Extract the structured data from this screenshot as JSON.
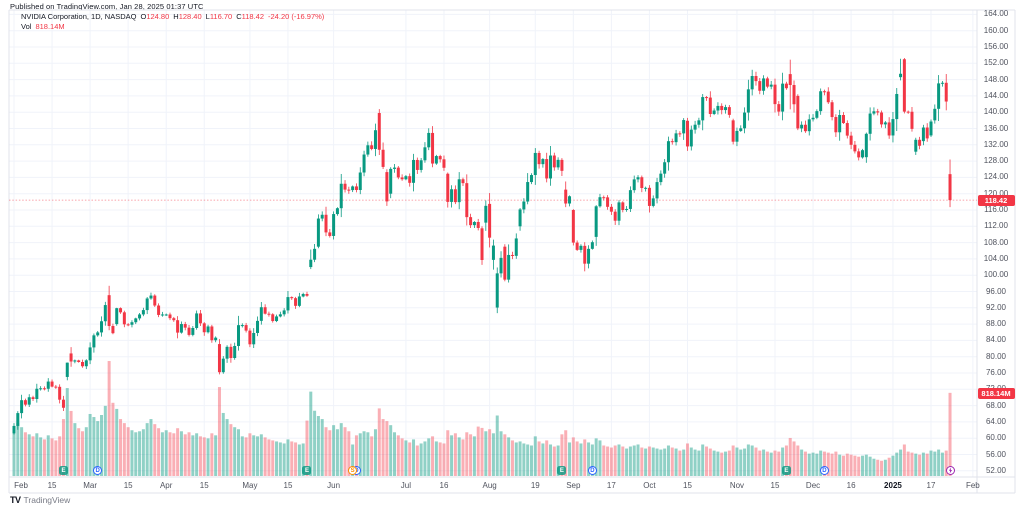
{
  "header": {
    "published": "Published on TradingView.com, Jan 28, 2025 01:37 UTC"
  },
  "legend": {
    "title": "NVIDIA Corporation, 1D, NASDAQ",
    "o_label": "O",
    "o": "124.80",
    "h_label": "H",
    "h": "128.40",
    "l_label": "L",
    "l": "116.70",
    "c_label": "C",
    "c": "118.42",
    "change": "-24.20 (-16.97%)",
    "vol_label": "Vol",
    "vol": "818.14M"
  },
  "attribution": {
    "mark": "TV",
    "text": "TradingView"
  },
  "chart_data": {
    "type": "candlestick+volume",
    "symbol": "NVIDIA Corporation",
    "interval": "1D",
    "exchange": "NASDAQ",
    "last_ohlc": {
      "open": 124.8,
      "high": 128.4,
      "low": 116.7,
      "close": 118.42,
      "change": -24.2,
      "change_pct": -16.97
    },
    "last_price_label": "118.42",
    "last_volume_label": "818.14M",
    "last_volume_m": 818.14,
    "y_axis": {
      "min": 52,
      "max": 164,
      "step": 4
    },
    "grid": true,
    "x_labels": [
      {
        "t": "Feb",
        "i": 0
      },
      {
        "t": "15",
        "i": 10
      },
      {
        "t": "Mar",
        "i": 20
      },
      {
        "t": "15",
        "i": 30
      },
      {
        "t": "Apr",
        "i": 40
      },
      {
        "t": "15",
        "i": 50
      },
      {
        "t": "May",
        "i": 62
      },
      {
        "t": "15",
        "i": 72
      },
      {
        "t": "Jun",
        "i": 84
      },
      {
        "t": "Jul",
        "i": 103
      },
      {
        "t": "16",
        "i": 113
      },
      {
        "t": "Aug",
        "i": 125
      },
      {
        "t": "19",
        "i": 137
      },
      {
        "t": "Sep",
        "i": 147
      },
      {
        "t": "17",
        "i": 157
      },
      {
        "t": "Oct",
        "i": 167
      },
      {
        "t": "15",
        "i": 177
      },
      {
        "t": "Nov",
        "i": 190
      },
      {
        "t": "15",
        "i": 200
      },
      {
        "t": "Dec",
        "i": 210
      },
      {
        "t": "16",
        "i": 220
      },
      {
        "t": "2025",
        "i": 231,
        "b": true
      },
      {
        "t": "17",
        "i": 241
      },
      {
        "t": "Feb",
        "i": 252
      }
    ],
    "events": [
      {
        "i": 13,
        "type": "earnings",
        "glyph": "E"
      },
      {
        "i": 22,
        "type": "dividend",
        "glyph": "D"
      },
      {
        "i": 77,
        "type": "earnings",
        "glyph": "E"
      },
      {
        "i": 90,
        "type": "dividend",
        "glyph": "D"
      },
      {
        "i": 89,
        "type": "split",
        "glyph": "S"
      },
      {
        "i": 144,
        "type": "earnings",
        "glyph": "E"
      },
      {
        "i": 152,
        "type": "dividend",
        "glyph": "D"
      },
      {
        "i": 203,
        "type": "earnings",
        "glyph": "E"
      },
      {
        "i": 213,
        "type": "dividend",
        "glyph": "D"
      },
      {
        "i": 246,
        "type": "future-earnings",
        "glyph": "bolt"
      }
    ],
    "colors": {
      "up": "#089981",
      "down": "#F23645",
      "vol_up": "rgba(8,153,129,0.45)",
      "vol_down": "rgba(242,54,69,0.40)",
      "grid": "#F0F3FA",
      "frame": "#E0E3EB",
      "price_line": "#F23645"
    },
    "vol_axis_max_m": 1200,
    "closes": [
      63.01,
      66.16,
      69.33,
      68.23,
      70.05,
      69.62,
      72.13,
      72.25,
      72.13,
      73.9,
      72.66,
      72.61,
      69.45,
      67.47,
      78.54,
      78.82,
      79.09,
      78.7,
      77.66,
      79.11,
      82.28,
      85.24,
      85.96,
      88.7,
      92.67,
      87.53,
      85.77,
      91.91,
      90.89,
      87.94,
      87.84,
      88.46,
      89.4,
      90.37,
      91.44,
      94.29,
      95.0,
      92.56,
      90.25,
      90.36,
      90.36,
      89.45,
      88.96,
      85.91,
      88.01,
      87.13,
      85.35,
      87.04,
      90.62,
      88.19,
      86.0,
      87.42,
      84.04,
      84.67,
      76.2,
      79.52,
      82.42,
      79.68,
      82.63,
      87.74,
      87.76,
      86.4,
      83.04,
      85.82,
      88.79,
      92.14,
      90.55,
      90.41,
      88.75,
      89.88,
      90.4,
      91.36,
      94.63,
      94.36,
      92.48,
      94.78,
      95.39,
      94.95,
      103.8,
      106.47,
      113.9,
      114.83,
      110.5,
      109.63,
      115.0,
      116.44,
      122.44,
      121.0,
      120.89,
      121.79,
      120.91,
      125.2,
      129.61,
      131.88,
      130.98,
      135.58,
      130.78,
      126.57,
      118.11,
      126.09,
      126.4,
      123.99,
      123.54,
      124.3,
      122.67,
      128.28,
      125.83,
      128.2,
      131.38,
      134.91,
      127.4,
      129.24,
      128.44,
      126.36,
      117.99,
      121.09,
      117.93,
      123.54,
      122.59,
      114.25,
      112.28,
      113.06,
      111.59,
      103.73,
      117.02,
      109.21,
      107.27,
      100.45,
      104.25,
      98.91,
      104.97,
      104.75,
      109.02,
      116.14,
      118.08,
      122.86,
      124.58,
      130.0,
      127.25,
      128.5,
      123.74,
      129.37,
      126.46,
      128.3,
      125.61,
      117.59,
      119.37,
      108.0,
      106.21,
      107.21,
      102.83,
      106.47,
      108.1,
      116.91,
      119.14,
      119.1,
      116.78,
      115.59,
      113.37,
      117.87,
      116.0,
      116.26,
      120.87,
      123.51,
      124.04,
      121.4,
      121.44,
      117.0,
      118.85,
      122.85,
      124.92,
      127.72,
      132.89,
      132.65,
      134.81,
      134.8,
      138.07,
      131.6,
      135.72,
      136.93,
      138.0,
      143.71,
      143.59,
      139.56,
      140.41,
      141.54,
      140.52,
      141.25,
      139.34,
      132.76,
      135.4,
      136.05,
      139.91,
      145.61,
      148.88,
      147.63,
      145.26,
      148.29,
      146.27,
      146.76,
      141.98,
      140.15,
      147.01,
      145.89,
      146.67,
      141.95,
      136.02,
      136.92,
      135.34,
      138.25,
      138.63,
      140.26,
      145.14,
      145.06,
      142.44,
      138.81,
      135.07,
      139.31,
      137.34,
      134.25,
      132.0,
      130.39,
      128.91,
      130.68,
      134.7,
      139.67,
      140.22,
      139.93,
      137.01,
      137.49,
      134.29,
      138.31,
      144.47,
      149.43,
      140.14,
      140.11,
      135.91,
      133.23,
      131.76,
      136.24,
      133.57,
      137.71,
      140.83,
      147.07,
      147.22,
      142.62,
      118.42
    ],
    "volumes_m": [
      460,
      520,
      480,
      430,
      410,
      390,
      420,
      380,
      360,
      400,
      370,
      350,
      390,
      560,
      865,
      640,
      520,
      470,
      440,
      480,
      610,
      580,
      540,
      600,
      690,
      1131,
      720,
      660,
      560,
      520,
      480,
      450,
      430,
      440,
      460,
      520,
      560,
      510,
      470,
      430,
      450,
      430,
      420,
      470,
      440,
      410,
      430,
      400,
      420,
      390,
      380,
      370,
      420,
      400,
      875,
      620,
      560,
      510,
      480,
      460,
      390,
      380,
      420,
      400,
      390,
      410,
      380,
      360,
      350,
      340,
      330,
      320,
      360,
      340,
      330,
      310,
      320,
      545,
      830,
      642,
      590,
      560,
      480,
      450,
      500,
      460,
      520,
      480,
      440,
      310,
      400,
      420,
      440,
      430,
      390,
      460,
      665,
      560,
      540,
      500,
      430,
      400,
      370,
      350,
      330,
      360,
      300,
      320,
      340,
      370,
      390,
      340,
      330,
      320,
      450,
      400,
      420,
      380,
      360,
      430,
      410,
      390,
      486,
      473,
      440,
      460,
      420,
      595,
      440,
      410,
      380,
      350,
      330,
      340,
      320,
      310,
      300,
      390,
      340,
      320,
      350,
      310,
      290,
      300,
      410,
      450,
      330,
      380,
      340,
      320,
      360,
      330,
      310,
      370,
      350,
      300,
      290,
      280,
      300,
      310,
      290,
      270,
      290,
      300,
      310,
      280,
      270,
      290,
      280,
      270,
      260,
      270,
      300,
      280,
      270,
      250,
      260,
      320,
      280,
      260,
      250,
      310,
      290,
      270,
      250,
      240,
      230,
      240,
      250,
      300,
      280,
      260,
      270,
      310,
      300,
      280,
      250,
      260,
      240,
      230,
      250,
      240,
      280,
      300,
      374,
      340,
      300,
      260,
      240,
      220,
      230,
      220,
      250,
      240,
      230,
      220,
      240,
      210,
      200,
      220,
      210,
      200,
      190,
      200,
      210,
      190,
      170,
      160,
      150,
      160,
      180,
      200,
      230,
      260,
      310,
      240,
      230,
      220,
      210,
      230,
      220,
      250,
      240,
      260,
      230,
      250,
      818
    ],
    "ohlc_overrides": {
      "0": [
        61.2,
        63.7,
        60.9,
        63.01
      ],
      "14": [
        75.03,
        78.58,
        74.21,
        78.54
      ],
      "15": [
        80.8,
        82.34,
        77.52,
        78.82
      ],
      "25": [
        95.1,
        97.4,
        86.5,
        87.53
      ],
      "27": [
        88.0,
        92.0,
        87.6,
        91.91
      ],
      "54": [
        83.1,
        84.3,
        75.66,
        76.2
      ],
      "78": [
        102.0,
        106.3,
        101.5,
        103.8
      ],
      "80": [
        107.0,
        114.94,
        106.6,
        113.9
      ],
      "96": [
        139.8,
        140.76,
        129.5,
        130.78
      ],
      "98": [
        125.3,
        126.0,
        117.0,
        118.11
      ],
      "99": [
        120.0,
        126.5,
        118.9,
        126.09
      ],
      "114": [
        124.9,
        125.2,
        116.6,
        117.99
      ],
      "123": [
        111.5,
        112.0,
        102.54,
        103.73
      ],
      "124": [
        112.9,
        118.34,
        110.88,
        117.02
      ],
      "125": [
        117.5,
        120.16,
        106.81,
        109.21
      ],
      "126": [
        103.76,
        108.72,
        101.37,
        107.27
      ],
      "127": [
        92.06,
        101.9,
        90.69,
        100.45
      ],
      "129": [
        107.0,
        107.6,
        98.5,
        98.91
      ],
      "133": [
        112.0,
        116.5,
        110.9,
        116.14
      ],
      "145": [
        121.0,
        123.0,
        116.7,
        117.59
      ],
      "147": [
        116.0,
        116.2,
        107.3,
        108.0
      ],
      "150": [
        107.2,
        108.1,
        100.95,
        102.83
      ],
      "153": [
        109.4,
        117.2,
        107.2,
        116.91
      ],
      "177": [
        137.9,
        138.6,
        130.5,
        131.6
      ],
      "189": [
        138.0,
        138.4,
        132.1,
        132.76
      ],
      "204": [
        149.35,
        152.89,
        140.7,
        146.67
      ],
      "206": [
        144.0,
        144.4,
        135.6,
        136.02
      ],
      "224": [
        128.96,
        135.0,
        127.58,
        134.7
      ],
      "233": [
        148.6,
        153.13,
        147.8,
        149.43
      ],
      "234": [
        153.0,
        153.3,
        139.7,
        140.14
      ],
      "237": [
        130.31,
        133.73,
        129.51,
        133.23
      ],
      "239": [
        132.9,
        136.9,
        131.9,
        136.24
      ],
      "241": [
        134.3,
        138.2,
        133.9,
        137.71
      ],
      "242": [
        138.0,
        141.9,
        137.2,
        140.83
      ],
      "246": [
        124.8,
        128.4,
        116.7,
        118.42
      ]
    }
  }
}
